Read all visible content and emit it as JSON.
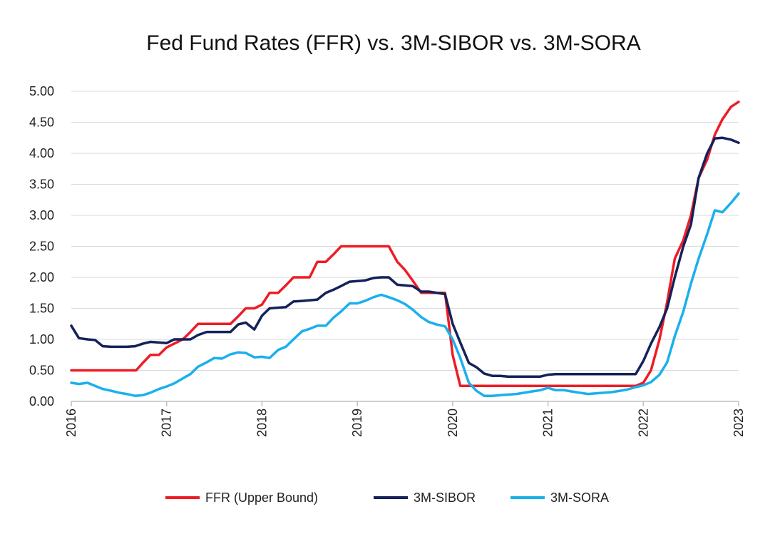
{
  "chart_data": {
    "type": "line",
    "title": "Fed Fund Rates (FFR) vs. 3M-SIBOR vs. 3M-SORA",
    "xlabel": "",
    "ylabel": "",
    "xlim": [
      2016,
      2023
    ],
    "ylim": [
      0,
      5
    ],
    "x_ticks": [
      "2016",
      "2017",
      "2018",
      "2019",
      "2020",
      "2021",
      "2022",
      "2023"
    ],
    "y_ticks": [
      "0.00",
      "0.50",
      "1.00",
      "1.50",
      "2.00",
      "2.50",
      "3.00",
      "3.50",
      "4.00",
      "4.50",
      "5.00"
    ],
    "grid": true,
    "legend_position": "bottom",
    "series": [
      {
        "name": "FFR (Upper Bound)",
        "color": "#ee1c25",
        "points": [
          [
            2016.0,
            0.5
          ],
          [
            2016.68,
            0.5
          ],
          [
            2016.75,
            0.62
          ],
          [
            2016.83,
            0.75
          ],
          [
            2016.92,
            0.75
          ],
          [
            2017.0,
            0.87
          ],
          [
            2017.17,
            1.0
          ],
          [
            2017.25,
            1.12
          ],
          [
            2017.33,
            1.25
          ],
          [
            2017.67,
            1.25
          ],
          [
            2017.75,
            1.37
          ],
          [
            2017.83,
            1.5
          ],
          [
            2017.92,
            1.5
          ],
          [
            2018.0,
            1.56
          ],
          [
            2018.08,
            1.75
          ],
          [
            2018.17,
            1.75
          ],
          [
            2018.25,
            1.87
          ],
          [
            2018.33,
            2.0
          ],
          [
            2018.5,
            2.0
          ],
          [
            2018.58,
            2.25
          ],
          [
            2018.67,
            2.25
          ],
          [
            2018.75,
            2.37
          ],
          [
            2018.83,
            2.5
          ],
          [
            2019.33,
            2.5
          ],
          [
            2019.42,
            2.25
          ],
          [
            2019.5,
            2.12
          ],
          [
            2019.58,
            1.95
          ],
          [
            2019.67,
            1.75
          ],
          [
            2019.92,
            1.75
          ],
          [
            2020.0,
            0.75
          ],
          [
            2020.08,
            0.25
          ],
          [
            2021.92,
            0.25
          ],
          [
            2022.0,
            0.3
          ],
          [
            2022.08,
            0.5
          ],
          [
            2022.17,
            1.0
          ],
          [
            2022.25,
            1.6
          ],
          [
            2022.33,
            2.3
          ],
          [
            2022.42,
            2.6
          ],
          [
            2022.5,
            3.0
          ],
          [
            2022.58,
            3.6
          ],
          [
            2022.67,
            3.9
          ],
          [
            2022.75,
            4.3
          ],
          [
            2022.83,
            4.55
          ],
          [
            2022.92,
            4.75
          ],
          [
            2023.0,
            4.83
          ]
        ]
      },
      {
        "name": "3M-SIBOR",
        "color": "#14215a",
        "points": [
          [
            2016.0,
            1.22
          ],
          [
            2016.08,
            1.02
          ],
          [
            2016.17,
            1.0
          ],
          [
            2016.25,
            0.99
          ],
          [
            2016.33,
            0.89
          ],
          [
            2016.42,
            0.88
          ],
          [
            2016.58,
            0.88
          ],
          [
            2016.67,
            0.89
          ],
          [
            2016.75,
            0.93
          ],
          [
            2016.83,
            0.96
          ],
          [
            2016.92,
            0.95
          ],
          [
            2017.0,
            0.94
          ],
          [
            2017.08,
            1.0
          ],
          [
            2017.25,
            1.0
          ],
          [
            2017.33,
            1.07
          ],
          [
            2017.42,
            1.12
          ],
          [
            2017.67,
            1.12
          ],
          [
            2017.75,
            1.24
          ],
          [
            2017.83,
            1.27
          ],
          [
            2017.92,
            1.16
          ],
          [
            2018.0,
            1.38
          ],
          [
            2018.08,
            1.5
          ],
          [
            2018.25,
            1.52
          ],
          [
            2018.33,
            1.61
          ],
          [
            2018.42,
            1.62
          ],
          [
            2018.58,
            1.64
          ],
          [
            2018.67,
            1.75
          ],
          [
            2018.75,
            1.8
          ],
          [
            2018.83,
            1.86
          ],
          [
            2018.92,
            1.93
          ],
          [
            2019.0,
            1.94
          ],
          [
            2019.08,
            1.95
          ],
          [
            2019.17,
            1.99
          ],
          [
            2019.25,
            2.0
          ],
          [
            2019.33,
            2.0
          ],
          [
            2019.42,
            1.88
          ],
          [
            2019.58,
            1.86
          ],
          [
            2019.67,
            1.77
          ],
          [
            2019.75,
            1.77
          ],
          [
            2019.92,
            1.73
          ],
          [
            2020.0,
            1.25
          ],
          [
            2020.08,
            0.95
          ],
          [
            2020.17,
            0.62
          ],
          [
            2020.25,
            0.55
          ],
          [
            2020.33,
            0.45
          ],
          [
            2020.42,
            0.41
          ],
          [
            2020.5,
            0.41
          ],
          [
            2020.58,
            0.4
          ],
          [
            2020.92,
            0.4
          ],
          [
            2021.0,
            0.43
          ],
          [
            2021.08,
            0.44
          ],
          [
            2021.92,
            0.44
          ],
          [
            2022.0,
            0.65
          ],
          [
            2022.08,
            0.93
          ],
          [
            2022.17,
            1.2
          ],
          [
            2022.25,
            1.5
          ],
          [
            2022.33,
            2.0
          ],
          [
            2022.42,
            2.5
          ],
          [
            2022.5,
            2.85
          ],
          [
            2022.58,
            3.6
          ],
          [
            2022.67,
            4.0
          ],
          [
            2022.75,
            4.24
          ],
          [
            2022.83,
            4.25
          ],
          [
            2022.92,
            4.22
          ],
          [
            2023.0,
            4.17
          ]
        ]
      },
      {
        "name": "3M-SORA",
        "color": "#1ab0ec",
        "points": [
          [
            2016.0,
            0.3
          ],
          [
            2016.08,
            0.28
          ],
          [
            2016.17,
            0.3
          ],
          [
            2016.25,
            0.25
          ],
          [
            2016.33,
            0.2
          ],
          [
            2016.42,
            0.17
          ],
          [
            2016.5,
            0.14
          ],
          [
            2016.58,
            0.12
          ],
          [
            2016.67,
            0.09
          ],
          [
            2016.75,
            0.1
          ],
          [
            2016.83,
            0.14
          ],
          [
            2016.92,
            0.2
          ],
          [
            2017.0,
            0.24
          ],
          [
            2017.08,
            0.29
          ],
          [
            2017.17,
            0.37
          ],
          [
            2017.25,
            0.44
          ],
          [
            2017.33,
            0.56
          ],
          [
            2017.42,
            0.63
          ],
          [
            2017.5,
            0.7
          ],
          [
            2017.58,
            0.69
          ],
          [
            2017.67,
            0.76
          ],
          [
            2017.75,
            0.79
          ],
          [
            2017.83,
            0.78
          ],
          [
            2017.92,
            0.71
          ],
          [
            2018.0,
            0.72
          ],
          [
            2018.08,
            0.7
          ],
          [
            2018.17,
            0.83
          ],
          [
            2018.25,
            0.88
          ],
          [
            2018.33,
            1.0
          ],
          [
            2018.42,
            1.13
          ],
          [
            2018.5,
            1.17
          ],
          [
            2018.58,
            1.22
          ],
          [
            2018.67,
            1.22
          ],
          [
            2018.75,
            1.35
          ],
          [
            2018.83,
            1.45
          ],
          [
            2018.92,
            1.58
          ],
          [
            2019.0,
            1.58
          ],
          [
            2019.08,
            1.62
          ],
          [
            2019.17,
            1.68
          ],
          [
            2019.25,
            1.72
          ],
          [
            2019.33,
            1.68
          ],
          [
            2019.42,
            1.63
          ],
          [
            2019.5,
            1.57
          ],
          [
            2019.58,
            1.48
          ],
          [
            2019.67,
            1.36
          ],
          [
            2019.75,
            1.28
          ],
          [
            2019.83,
            1.24
          ],
          [
            2019.92,
            1.21
          ],
          [
            2020.0,
            1.0
          ],
          [
            2020.08,
            0.7
          ],
          [
            2020.17,
            0.3
          ],
          [
            2020.25,
            0.17
          ],
          [
            2020.33,
            0.09
          ],
          [
            2020.42,
            0.09
          ],
          [
            2020.5,
            0.1
          ],
          [
            2020.67,
            0.12
          ],
          [
            2020.83,
            0.16
          ],
          [
            2020.92,
            0.18
          ],
          [
            2021.0,
            0.22
          ],
          [
            2021.08,
            0.18
          ],
          [
            2021.17,
            0.18
          ],
          [
            2021.25,
            0.16
          ],
          [
            2021.33,
            0.14
          ],
          [
            2021.42,
            0.12
          ],
          [
            2021.5,
            0.13
          ],
          [
            2021.67,
            0.15
          ],
          [
            2021.83,
            0.19
          ],
          [
            2021.92,
            0.23
          ],
          [
            2022.0,
            0.26
          ],
          [
            2022.08,
            0.31
          ],
          [
            2022.17,
            0.43
          ],
          [
            2022.25,
            0.63
          ],
          [
            2022.33,
            1.05
          ],
          [
            2022.42,
            1.45
          ],
          [
            2022.5,
            1.9
          ],
          [
            2022.58,
            2.3
          ],
          [
            2022.67,
            2.7
          ],
          [
            2022.75,
            3.08
          ],
          [
            2022.83,
            3.05
          ],
          [
            2022.92,
            3.2
          ],
          [
            2023.0,
            3.35
          ]
        ]
      }
    ]
  }
}
